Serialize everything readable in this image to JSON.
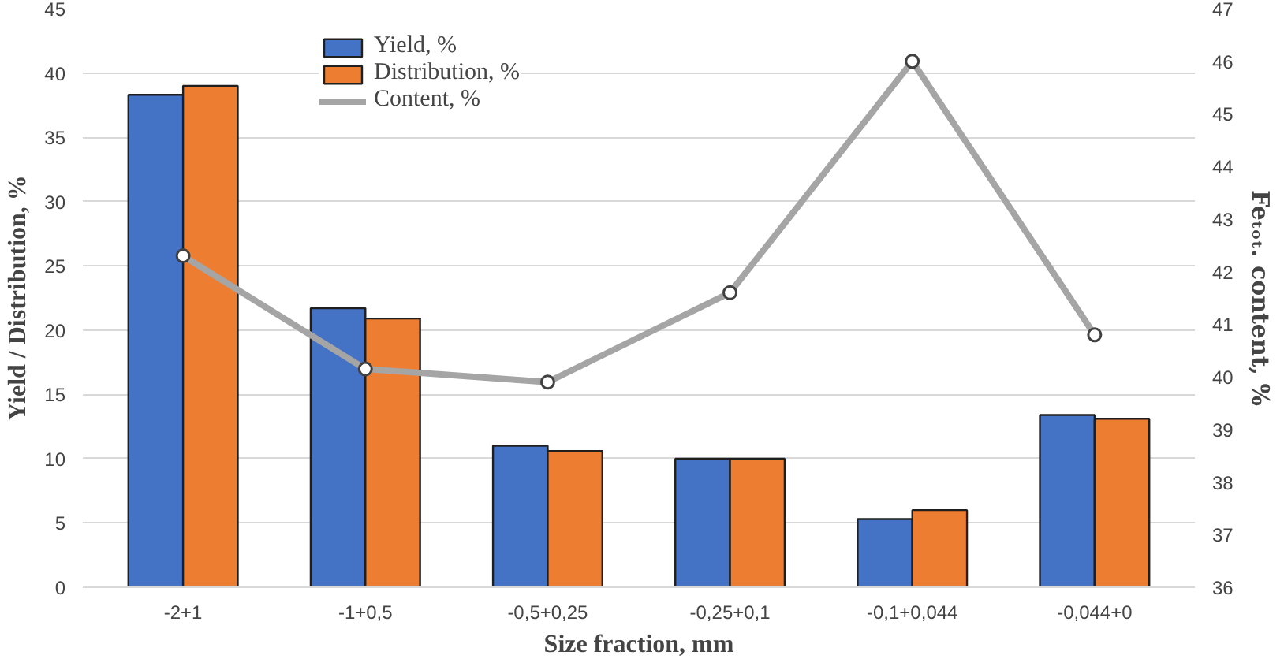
{
  "chart_data": {
    "type": "bar",
    "xlabel": "Size fraction, mm",
    "ylabel": "Yield / Distribution, %",
    "y2label": "Feₜₒₜ. content, %",
    "categories": [
      "-2+1",
      "-1+0,5",
      "-0,5+0,25",
      "-0,25+0,1",
      "-0,1+0,044",
      "-0,044+0"
    ],
    "series": [
      {
        "name": "Yield, %",
        "color": "#4472c4",
        "values": [
          38.3,
          21.7,
          11.0,
          10.0,
          5.3,
          13.4
        ]
      },
      {
        "name": "Distribution, %",
        "color": "#ed7d31",
        "values": [
          39.0,
          20.9,
          10.6,
          10.0,
          6.0,
          13.1
        ]
      },
      {
        "name": "Content, %",
        "type": "line",
        "axis": "y2",
        "color": "#a5a5a5",
        "marker": "circle",
        "values": [
          42.3,
          40.15,
          39.9,
          41.6,
          46.0,
          40.8
        ]
      }
    ],
    "ylim": [
      0,
      45
    ],
    "yticks": [
      0,
      5,
      10,
      15,
      20,
      25,
      30,
      35,
      40,
      45
    ],
    "y2lim": [
      36,
      47
    ],
    "y2ticks": [
      36,
      37,
      38,
      39,
      40,
      41,
      42,
      43,
      44,
      45,
      46,
      47
    ],
    "grid": "y",
    "legend": "top"
  }
}
